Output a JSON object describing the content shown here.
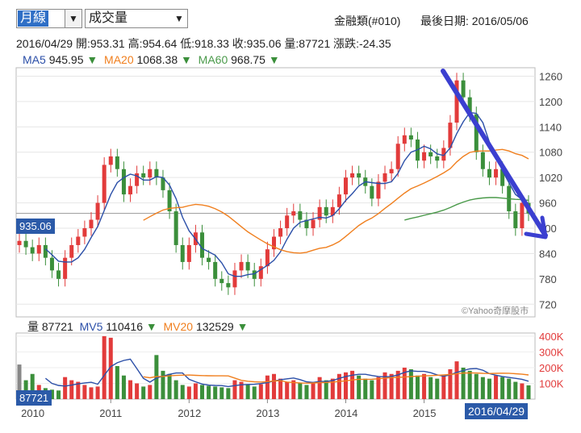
{
  "toolbar": {
    "period_label": "月線",
    "indicator_label": "成交量",
    "title": "金融類(#010)",
    "last_date_label": "最後日期: 2016/05/06"
  },
  "ohlc_line": {
    "date": "2016/04/29",
    "open": "開:953.31",
    "high": "高:954.64",
    "low": "低:918.33",
    "close": "收:935.06",
    "volume": "量:87721",
    "change": "漲跌:-24.35"
  },
  "ma_legend": [
    {
      "name": "MA5",
      "value": "945.95",
      "color": "#2b4fa8"
    },
    {
      "name": "MA20",
      "value": "1068.38",
      "color": "#f07f1e"
    },
    {
      "name": "MA60",
      "value": "968.75",
      "color": "#4a9a4a"
    }
  ],
  "vol_legend": [
    {
      "name": "量",
      "value": "87721",
      "color": "#222222"
    },
    {
      "name": "MV5",
      "value": "110416",
      "color": "#2b4fa8"
    },
    {
      "name": "MV20",
      "value": "132529",
      "color": "#f07f1e"
    }
  ],
  "price_marker": "935.06",
  "volume_marker": "87721",
  "date_marker": "2016/04/29",
  "watermark": "©Yahoo奇摩股市",
  "icons": {
    "dropdown": "chevron-down-icon",
    "legend_arrow": "triangle-down-icon"
  },
  "colors": {
    "up": "#e23b3b",
    "down": "#3b8f3b",
    "ma5": "#2b4fa8",
    "ma20": "#f07f1e",
    "ma60": "#4a9a4a",
    "marker_bg": "#2b5aa8"
  },
  "chart_data": {
    "type": "candlestick",
    "x_ticks": [
      "2010",
      "2011",
      "2012",
      "2013",
      "2014",
      "2015"
    ],
    "price_ticks": [
      1260,
      1200,
      1140,
      1080,
      1020,
      960,
      900,
      840,
      780,
      720
    ],
    "price_range": [
      690,
      1280
    ],
    "volume_ticks": [
      "400K",
      "300K",
      "200K",
      "100K"
    ],
    "volume_range": [
      0,
      420000
    ],
    "close": [
      870,
      855,
      840,
      860,
      830,
      800,
      780,
      830,
      860,
      880,
      900,
      920,
      960,
      1050,
      1070,
      1040,
      980,
      1000,
      1030,
      1020,
      1040,
      1020,
      990,
      940,
      860,
      820,
      860,
      890,
      830,
      820,
      780,
      770,
      760,
      800,
      820,
      800,
      780,
      810,
      850,
      880,
      900,
      930,
      940,
      920,
      900,
      920,
      950,
      930,
      950,
      980,
      1020,
      1030,
      1020,
      1000,
      970,
      1010,
      1030,
      1040,
      1100,
      1120,
      1110,
      1060,
      1080,
      1070,
      1060,
      1090,
      1150,
      1250,
      1210,
      1170,
      1080,
      1040,
      1020,
      1040,
      1000,
      940,
      900,
      960,
      935
    ],
    "last_close": 935.06,
    "volumes": [
      220000,
      120000,
      160000,
      90000,
      70000,
      60000,
      55000,
      140000,
      120000,
      110000,
      90000,
      75000,
      80000,
      400000,
      390000,
      210000,
      150000,
      120000,
      100000,
      80000,
      90000,
      280000,
      180000,
      160000,
      120000,
      90000,
      80000,
      100000,
      90000,
      85000,
      80000,
      75000,
      70000,
      120000,
      110000,
      90000,
      80000,
      95000,
      150000,
      160000,
      130000,
      110000,
      120000,
      100000,
      90000,
      110000,
      140000,
      120000,
      130000,
      160000,
      170000,
      180000,
      150000,
      130000,
      120000,
      140000,
      170000,
      160000,
      180000,
      200000,
      190000,
      150000,
      160000,
      140000,
      130000,
      150000,
      190000,
      240000,
      200000,
      180000,
      160000,
      140000,
      130000,
      150000,
      140000,
      130000,
      110000,
      100000,
      87721
    ],
    "last_volume": 87721,
    "ma5_last": 945.95,
    "ma20_last": 1068.38,
    "ma60_last": 968.75,
    "mv5_last": 110416,
    "mv20_last": 132529
  }
}
